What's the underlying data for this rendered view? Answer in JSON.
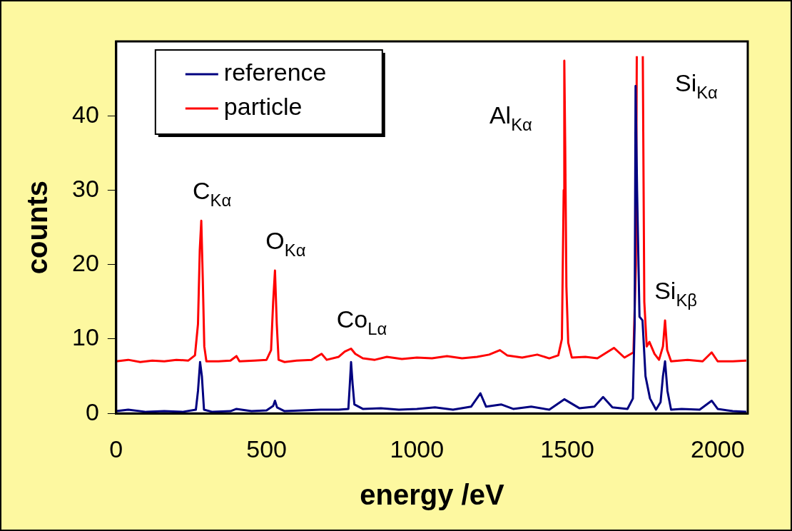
{
  "chart_data": {
    "type": "line",
    "xlabel": "energy /eV",
    "ylabel": "counts",
    "xlim": [
      0,
      2100
    ],
    "xticks": [
      0,
      500,
      1000,
      1500,
      2000
    ],
    "ylim": [
      0,
      50
    ],
    "yticks": [
      0,
      10,
      20,
      30,
      40
    ],
    "grid": false,
    "legend": "top left",
    "marker": "none",
    "line_style": "solid",
    "series": [
      {
        "name": "reference",
        "color": "#000080",
        "x": [
          0,
          40,
          100,
          160,
          220,
          265,
          272,
          279,
          285,
          292,
          320,
          380,
          400,
          450,
          500,
          522,
          528,
          535,
          560,
          620,
          680,
          740,
          772,
          777,
          781,
          786,
          792,
          820,
          880,
          940,
          1000,
          1060,
          1120,
          1180,
          1211,
          1230,
          1280,
          1320,
          1380,
          1440,
          1490,
          1540,
          1590,
          1619,
          1650,
          1700,
          1718,
          1724,
          1727,
          1732,
          1740,
          1750,
          1760,
          1775,
          1795,
          1810,
          1818,
          1825,
          1833,
          1845,
          1880,
          1940,
          1980,
          2000,
          2050,
          2095
        ],
        "values": [
          0.3,
          0.5,
          0.2,
          0.3,
          0.2,
          0.5,
          3,
          6.9,
          5,
          0.5,
          0.2,
          0.3,
          0.6,
          0.3,
          0.4,
          1.0,
          1.7,
          0.8,
          0.3,
          0.4,
          0.5,
          0.5,
          0.6,
          4,
          6.9,
          4,
          1.2,
          0.6,
          0.7,
          0.5,
          0.6,
          0.8,
          0.5,
          0.9,
          2.7,
          0.9,
          1.2,
          0.6,
          0.9,
          0.5,
          1.9,
          0.7,
          0.9,
          2.2,
          0.8,
          0.6,
          2,
          12,
          44,
          30,
          13,
          12.5,
          5,
          2,
          0.5,
          1.5,
          5,
          7.0,
          3,
          0.5,
          0.6,
          0.5,
          1.7,
          0.6,
          0.3,
          0.2
        ]
      },
      {
        "name": "particle",
        "color": "#ff0000",
        "x": [
          0,
          40,
          80,
          120,
          160,
          200,
          240,
          262,
          272,
          278,
          283,
          288,
          293,
          300,
          340,
          380,
          400,
          410,
          460,
          500,
          515,
          522,
          528,
          534,
          540,
          560,
          600,
          650,
          683,
          700,
          740,
          760,
          781,
          795,
          820,
          860,
          900,
          950,
          1000,
          1050,
          1100,
          1150,
          1200,
          1240,
          1276,
          1300,
          1350,
          1400,
          1440,
          1470,
          1482,
          1488,
          1490,
          1493,
          1497,
          1503,
          1515,
          1560,
          1600,
          1655,
          1690,
          1720,
          1728,
          1731,
          1741,
          1751,
          1756,
          1764,
          1773,
          1790,
          1805,
          1818,
          1825,
          1832,
          1845,
          1900,
          1950,
          1980,
          2000,
          2050,
          2095
        ],
        "values": [
          7.0,
          7.2,
          6.9,
          7.1,
          7.0,
          7.2,
          7.1,
          7.8,
          12,
          22,
          25.9,
          18,
          9,
          7.0,
          7.0,
          7.1,
          7.7,
          7.0,
          7.1,
          7.2,
          8.5,
          15,
          19.2,
          12,
          7.2,
          6.9,
          7.1,
          7.2,
          8.0,
          7.2,
          7.6,
          8.3,
          8.7,
          8.0,
          7.4,
          7.2,
          7.6,
          7.3,
          7.5,
          7.4,
          7.7,
          7.4,
          7.6,
          7.9,
          8.5,
          7.8,
          7.5,
          7.9,
          7.4,
          7.8,
          10,
          30,
          47.4,
          36,
          17,
          9.5,
          7.5,
          7.6,
          7.4,
          8.8,
          7.5,
          8.2,
          20,
          48,
          null,
          48,
          15,
          9.0,
          9.6,
          8.0,
          7.2,
          9,
          12.5,
          8.5,
          7.0,
          7.2,
          7.0,
          8.2,
          7.0,
          7.0,
          7.1
        ]
      }
    ],
    "annotations": [
      {
        "text": "C$_{Kα}$",
        "x": 283,
        "y": 25.9
      },
      {
        "text": "O$_{Kα}$",
        "x": 528,
        "y": 19.2
      },
      {
        "text": "Co$_{Lα}$",
        "x": 781,
        "y": 8.7
      },
      {
        "text": "Al$_{Kα}$",
        "x": 1490,
        "y": 47.4
      },
      {
        "text": "Si$_{Kα}$",
        "x": 1751,
        "y": 48
      },
      {
        "text": "Si$_{Kβ}$",
        "x": 1825,
        "y": 12.5
      }
    ]
  }
}
